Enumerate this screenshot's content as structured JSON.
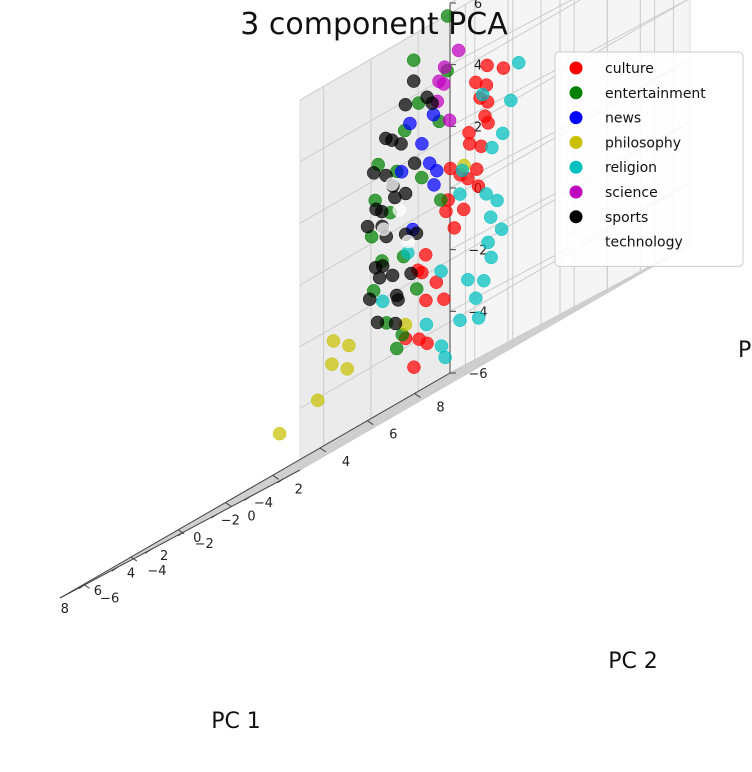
{
  "chart_data": {
    "type": "scatter",
    "projection": "3d",
    "title": "3 component PCA",
    "xlabel": "PC 1",
    "ylabel": "PC 2",
    "zlabel": "P",
    "xlim": [
      -5,
      9.5
    ],
    "ylim": [
      -7,
      9.5
    ],
    "zlim": [
      -6,
      6
    ],
    "xticks": [
      -4,
      -2,
      0,
      2,
      4,
      6,
      8
    ],
    "yticks": [
      -6,
      -4,
      -2,
      0,
      2,
      4,
      6,
      8
    ],
    "zticks": [
      -6,
      -4,
      -2,
      0,
      2,
      4,
      6
    ],
    "grid": true,
    "legend_position": "top-right",
    "series": [
      {
        "name": "culture",
        "color": "#ff0000",
        "values": [
          [
            3.4,
            6.5,
            2.5
          ],
          [
            4.1,
            7.2,
            1.8
          ],
          [
            2.8,
            5.9,
            3.1
          ],
          [
            4.8,
            7.8,
            2.2
          ],
          [
            3.9,
            6.9,
            0.9
          ],
          [
            5.2,
            8.1,
            1.5
          ],
          [
            1.6,
            3.8,
            -0.5
          ],
          [
            2.1,
            4.5,
            -1.2
          ],
          [
            0.9,
            2.9,
            -2.6
          ],
          [
            1.3,
            3.5,
            -3.3
          ],
          [
            -0.2,
            1.4,
            -4.1
          ],
          [
            0.6,
            2.3,
            -4.4
          ],
          [
            2.6,
            5.1,
            0.4
          ],
          [
            3.1,
            5.6,
            -0.8
          ],
          [
            4.4,
            7.5,
            3.4
          ],
          [
            -1.1,
            0.2,
            -3.8
          ],
          [
            0.2,
            1.8,
            -2.0
          ],
          [
            3.6,
            6.2,
            1.2
          ],
          [
            2.3,
            3.1,
            -1.9
          ],
          [
            1.9,
            4.2,
            0.8
          ],
          [
            5.6,
            7.9,
            0.2
          ],
          [
            4.7,
            8.4,
            3.0
          ],
          [
            -0.6,
            0.9,
            -4.9
          ],
          [
            1.1,
            2.6,
            -3.0
          ],
          [
            2.9,
            4.8,
            -0.2
          ],
          [
            3.3,
            6.7,
            2.8
          ],
          [
            6.5,
            8.6,
            -0.4
          ],
          [
            0.4,
            2.1,
            -1.5
          ],
          [
            2.5,
            5.4,
            1.6
          ],
          [
            4.0,
            6.4,
            0.1
          ]
        ]
      },
      {
        "name": "entertainment",
        "color": "#008000",
        "values": [
          [
            -2.6,
            -1.5,
            0.6
          ],
          [
            -3.1,
            -2.2,
            -0.8
          ],
          [
            -2.0,
            -0.8,
            1.8
          ],
          [
            -3.6,
            -2.9,
            -1.6
          ],
          [
            -1.6,
            0.4,
            3.6
          ],
          [
            -2.3,
            -0.3,
            5.1
          ],
          [
            -3.9,
            -3.2,
            0.2
          ],
          [
            -1.2,
            0.6,
            -2.4
          ],
          [
            -2.8,
            -1.8,
            -2.9
          ],
          [
            -0.5,
            1.3,
            1.1
          ],
          [
            -3.3,
            -2.5,
            2.4
          ],
          [
            -1.9,
            -0.5,
            -3.6
          ],
          [
            -2.2,
            1.2,
            5.9
          ],
          [
            -0.9,
            2.1,
            4.1
          ],
          [
            -3.7,
            -2.0,
            -3.9
          ],
          [
            -1.4,
            -0.1,
            -1.1
          ],
          [
            -2.9,
            -1.1,
            3.0
          ],
          [
            -0.7,
            1.9,
            2.6
          ],
          [
            -3.4,
            -2.7,
            1.3
          ],
          [
            0.2,
            2.6,
            0.0
          ]
        ]
      },
      {
        "name": "news",
        "color": "#0000ff",
        "values": [
          [
            -0.8,
            1.1,
            2.2
          ],
          [
            0.3,
            2.2,
            1.4
          ],
          [
            -1.5,
            0.1,
            3.1
          ],
          [
            0.9,
            2.8,
            0.6
          ],
          [
            -1.1,
            0.5,
            -0.4
          ],
          [
            0.5,
            2.5,
            2.9
          ],
          [
            -2.0,
            -0.6,
            1.7
          ],
          [
            1.3,
            3.2,
            1.0
          ]
        ]
      },
      {
        "name": "philosophy",
        "color": "#c8c000",
        "values": [
          [
            -4.1,
            -4.3,
            -2.9
          ],
          [
            -3.5,
            -4.6,
            -3.2
          ],
          [
            1.8,
            -3.1,
            -4.6
          ],
          [
            0.5,
            -2.4,
            -4.2
          ],
          [
            1.2,
            1.8,
            -3.4
          ],
          [
            3.8,
            6.1,
            0.6
          ],
          [
            -2.6,
            -3.9,
            -2.5
          ],
          [
            -1.0,
            -2.2,
            -3.7
          ]
        ]
      },
      {
        "name": "religion",
        "color": "#00c0c0",
        "values": [
          [
            5.8,
            8.9,
            -1.2
          ],
          [
            6.4,
            9.1,
            0.6
          ],
          [
            5.1,
            8.6,
            -2.2
          ],
          [
            4.3,
            7.6,
            -2.9
          ],
          [
            6.9,
            8.2,
            0.4
          ],
          [
            5.4,
            9.2,
            1.8
          ],
          [
            3.6,
            6.8,
            -3.5
          ],
          [
            4.9,
            8.0,
            -1.6
          ],
          [
            6.1,
            8.5,
            2.5
          ],
          [
            2.8,
            5.9,
            -3.9
          ],
          [
            3.2,
            6.3,
            -4.6
          ],
          [
            1.9,
            4.6,
            -4.3
          ],
          [
            0.8,
            3.2,
            -5.2
          ],
          [
            5.9,
            7.4,
            -0.3
          ],
          [
            4.6,
            8.3,
            0.9
          ],
          [
            6.6,
            9.0,
            -0.8
          ],
          [
            2.3,
            4.1,
            -4.8
          ],
          [
            3.9,
            5.2,
            -2.4
          ],
          [
            -3.8,
            -1.6,
            -1.0
          ],
          [
            -4.0,
            -2.8,
            -2.1
          ],
          [
            5.0,
            7.1,
            -3.2
          ],
          [
            6.2,
            8.8,
            -2.4
          ],
          [
            1.5,
            2.9,
            -3.8
          ],
          [
            4.2,
            8.7,
            2.9
          ]
        ]
      },
      {
        "name": "science",
        "color": "#c000c0",
        "values": [
          [
            -3.3,
            0.9,
            4.6
          ],
          [
            -1.3,
            1.4,
            3.3
          ],
          [
            0.6,
            3.0,
            3.7
          ],
          [
            -0.4,
            2.1,
            3.9
          ],
          [
            -2.6,
            0.8,
            4.3
          ],
          [
            1.1,
            3.6,
            2.4
          ]
        ]
      },
      {
        "name": "sports",
        "color": "#000000",
        "values": [
          [
            -2.4,
            -1.7,
            0.3
          ],
          [
            -3.0,
            -2.4,
            -0.9
          ],
          [
            -1.9,
            -0.9,
            1.4
          ],
          [
            -3.5,
            -3.0,
            -1.8
          ],
          [
            -1.4,
            -0.2,
            2.6
          ],
          [
            -2.7,
            -1.3,
            -2.2
          ],
          [
            -2.1,
            -0.5,
            -0.4
          ],
          [
            -3.2,
            -2.1,
            1.9
          ],
          [
            -1.6,
            -0.7,
            -1.5
          ],
          [
            -2.9,
            -1.9,
            3.1
          ],
          [
            -3.8,
            -3.3,
            0.6
          ],
          [
            -1.1,
            0.2,
            0.9
          ],
          [
            -2.2,
            -1.0,
            -3.1
          ],
          [
            -0.9,
            0.8,
            -0.6
          ],
          [
            -2.6,
            -2.2,
            2.2
          ],
          [
            -1.8,
            -0.3,
            3.8
          ],
          [
            -3.4,
            -2.6,
            -2.7
          ],
          [
            -0.5,
            1.0,
            1.7
          ],
          [
            -2.0,
            -1.4,
            -1.0
          ],
          [
            -1.3,
            0.4,
            4.4
          ],
          [
            -3.6,
            -2.8,
            1.0
          ],
          [
            -2.5,
            -1.6,
            -0.1
          ],
          [
            -1.7,
            -0.8,
            2.9
          ],
          [
            -0.4,
            1.6,
            3.6
          ],
          [
            0.3,
            2.3,
            3.3
          ],
          [
            -2.8,
            -2.0,
            0.8
          ],
          [
            -1.5,
            -0.4,
            -2.4
          ],
          [
            -3.1,
            -2.3,
            -1.3
          ],
          [
            -2.3,
            -1.1,
            1.0
          ],
          [
            -1.0,
            0.5,
            -1.8
          ]
        ]
      },
      {
        "name": "technology",
        "color": "#ffffff",
        "values": [
          [
            -2.0,
            -0.7,
            0.5
          ],
          [
            -2.7,
            -1.5,
            1.5
          ],
          [
            -1.4,
            0.1,
            -0.7
          ],
          [
            -3.2,
            -2.2,
            0.2
          ]
        ]
      }
    ]
  }
}
